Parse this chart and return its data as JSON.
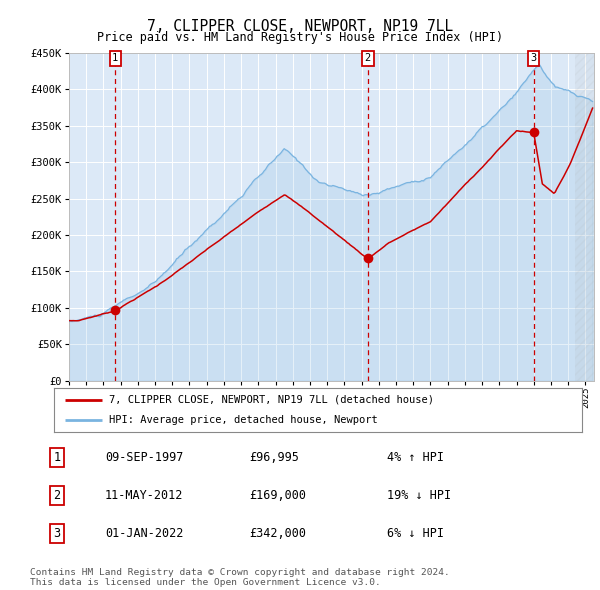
{
  "title": "7, CLIPPER CLOSE, NEWPORT, NP19 7LL",
  "subtitle": "Price paid vs. HM Land Registry's House Price Index (HPI)",
  "bg_color": "#dce9f7",
  "fig_bg_color": "#ffffff",
  "hpi_color": "#7ab4e0",
  "price_color": "#cc0000",
  "ylabel_values": [
    0,
    50000,
    100000,
    150000,
    200000,
    250000,
    300000,
    350000,
    400000,
    450000
  ],
  "ylabel_labels": [
    "£0",
    "£50K",
    "£100K",
    "£150K",
    "£200K",
    "£250K",
    "£300K",
    "£350K",
    "£400K",
    "£450K"
  ],
  "xlim_start": 1995.0,
  "xlim_end": 2025.5,
  "ylim_min": 0,
  "ylim_max": 450000,
  "sale_dates": [
    1997.69,
    2012.36,
    2022.0
  ],
  "sale_prices": [
    96995,
    169000,
    342000
  ],
  "sale_labels": [
    "1",
    "2",
    "3"
  ],
  "legend_line1": "7, CLIPPER CLOSE, NEWPORT, NP19 7LL (detached house)",
  "legend_line2": "HPI: Average price, detached house, Newport",
  "table_rows": [
    [
      "1",
      "09-SEP-1997",
      "£96,995",
      "4% ↑ HPI"
    ],
    [
      "2",
      "11-MAY-2012",
      "£169,000",
      "19% ↓ HPI"
    ],
    [
      "3",
      "01-JAN-2022",
      "£342,000",
      "6% ↓ HPI"
    ]
  ],
  "footer": "Contains HM Land Registry data © Crown copyright and database right 2024.\nThis data is licensed under the Open Government Licence v3.0.",
  "hatch_region_start": 2024.42,
  "hatch_region_end": 2025.5
}
